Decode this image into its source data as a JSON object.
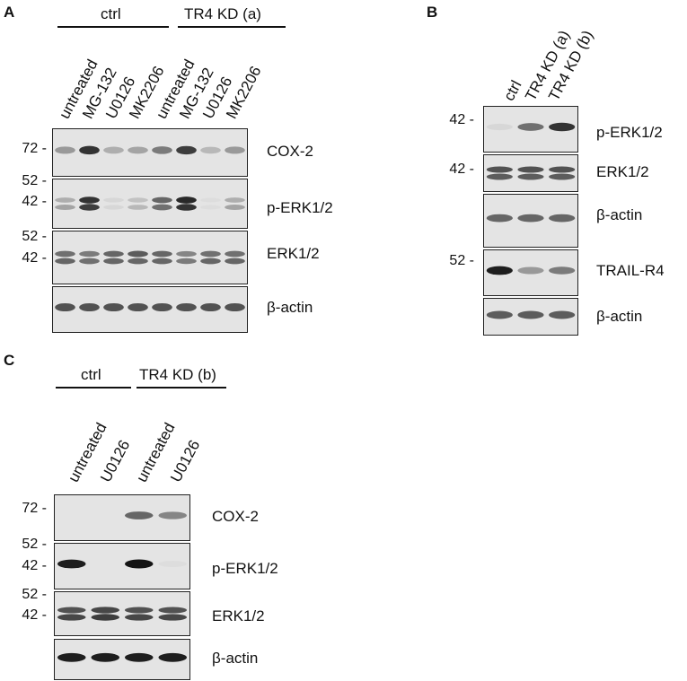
{
  "panels": [
    {
      "id": "A",
      "letter": "A",
      "groups": [
        {
          "label": "ctrl",
          "lanes": 4
        },
        {
          "label": "TR4 KD (a)",
          "lanes": 4
        }
      ],
      "lanes": [
        "untreated",
        "MG-132",
        "U0126",
        "MK2206",
        "untreated",
        "MG-132",
        "U0126",
        "MK2206"
      ],
      "blots": [
        {
          "target": "COX-2",
          "markers": [
            "72 -"
          ],
          "bands": [
            [
              0.35,
              0.85,
              0.25,
              0.3,
              0.5,
              0.8,
              0.2,
              0.35
            ]
          ]
        },
        {
          "target": "p-ERK1/2",
          "markers": [
            "52 -",
            "42 -"
          ],
          "bands": [
            [
              0.25,
              0.85,
              0.05,
              0.15,
              0.6,
              0.9,
              0.02,
              0.25
            ],
            [
              0.3,
              0.8,
              0.05,
              0.2,
              0.55,
              0.85,
              0.02,
              0.3
            ]
          ]
        },
        {
          "target": "ERK1/2",
          "markers": [
            "52 -",
            "42 -"
          ],
          "bands": [
            [
              0.55,
              0.5,
              0.6,
              0.65,
              0.6,
              0.45,
              0.55,
              0.55
            ],
            [
              0.6,
              0.55,
              0.6,
              0.6,
              0.6,
              0.5,
              0.6,
              0.6
            ]
          ]
        },
        {
          "target": "β-actin",
          "markers": [],
          "bands": [
            [
              0.7,
              0.7,
              0.7,
              0.7,
              0.7,
              0.7,
              0.7,
              0.7
            ]
          ]
        }
      ]
    },
    {
      "id": "B",
      "letter": "B",
      "groups": [],
      "lanes": [
        "ctrl",
        "TR4 KD (a)",
        "TR4 KD (b)"
      ],
      "blots": [
        {
          "target": "p-ERK1/2",
          "markers": [
            "42 -"
          ],
          "bands": [
            [
              0.05,
              0.55,
              0.85
            ]
          ]
        },
        {
          "target": "ERK1/2",
          "markers": [
            "42 -"
          ],
          "bands": [
            [
              0.7,
              0.7,
              0.7
            ],
            [
              0.65,
              0.65,
              0.65
            ]
          ]
        },
        {
          "target": "β-actin",
          "markers": [],
          "bands": [
            [
              0.6,
              0.6,
              0.6
            ]
          ]
        },
        {
          "target": "TRAIL-R4",
          "markers": [
            "52 -"
          ],
          "bands": [
            [
              0.95,
              0.35,
              0.5
            ]
          ]
        },
        {
          "target": "β-actin",
          "markers": [],
          "bands": [
            [
              0.65,
              0.65,
              0.65
            ]
          ]
        }
      ]
    },
    {
      "id": "C",
      "letter": "C",
      "groups": [
        {
          "label": "ctrl",
          "lanes": 2
        },
        {
          "label": "TR4 KD (b)",
          "lanes": 2
        }
      ],
      "lanes": [
        "untreated",
        "U0126",
        "untreated",
        "U0126"
      ],
      "blots": [
        {
          "target": "COX-2",
          "markers": [
            "72 -"
          ],
          "bands": [
            [
              0.0,
              0.0,
              0.6,
              0.45
            ]
          ]
        },
        {
          "target": "p-ERK1/2",
          "markers": [
            "52 -",
            "42 -"
          ],
          "bands": [
            [
              0.95,
              0.0,
              1.0,
              0.02
            ]
          ]
        },
        {
          "target": "ERK1/2",
          "markers": [
            "52 -",
            "42 -"
          ],
          "bands": [
            [
              0.7,
              0.75,
              0.7,
              0.7
            ],
            [
              0.75,
              0.8,
              0.75,
              0.75
            ]
          ]
        },
        {
          "target": "β-actin",
          "markers": [],
          "bands": [
            [
              0.95,
              0.95,
              0.95,
              0.95
            ]
          ]
        }
      ]
    }
  ]
}
